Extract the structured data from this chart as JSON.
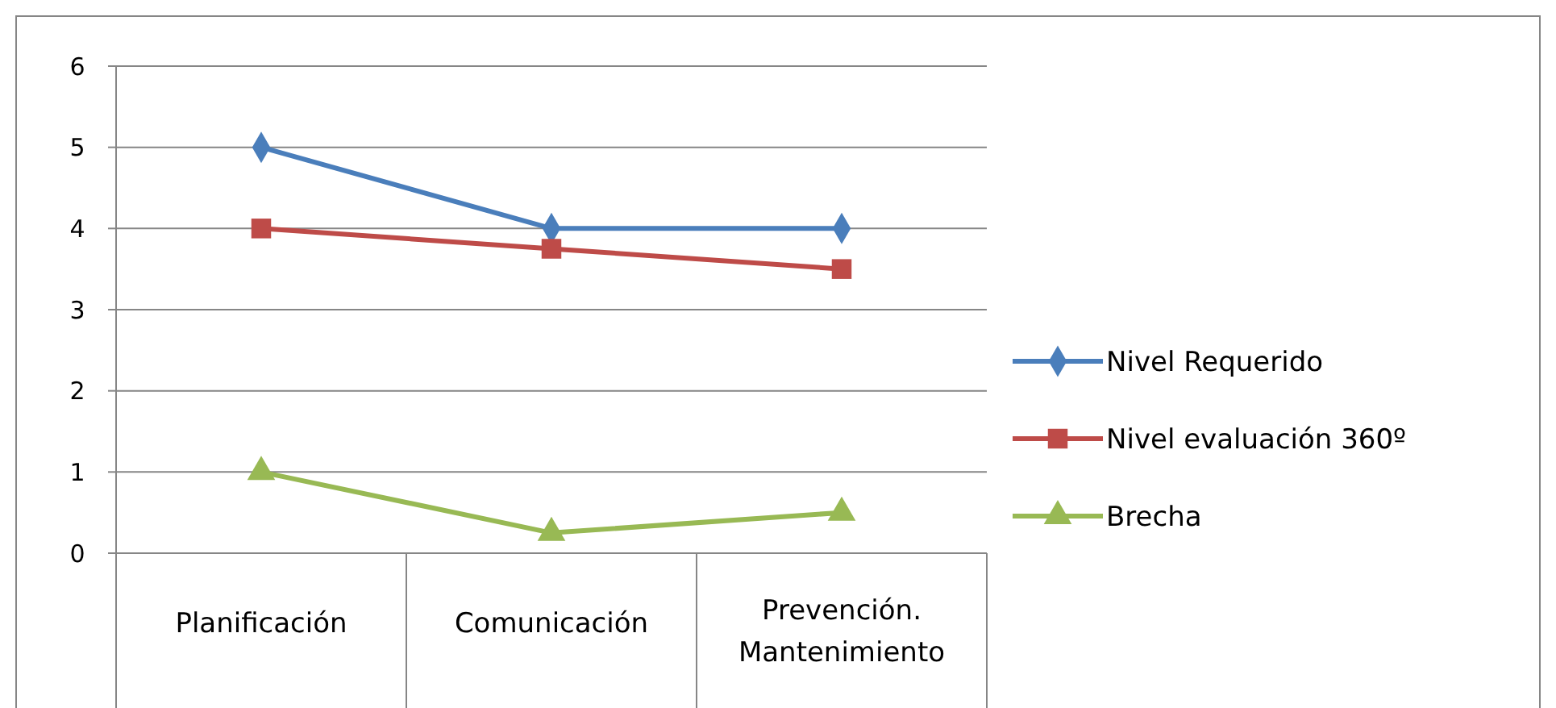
{
  "chart_data": {
    "type": "line",
    "categories": [
      "Planificación",
      "Comunicación",
      "Prevención. Mantenimiento"
    ],
    "series": [
      {
        "name": "Nivel Requerido",
        "color": "#4a7ebb",
        "values": [
          5,
          4,
          4
        ],
        "marker": "diamond"
      },
      {
        "name": "Nivel evaluación 360º",
        "color": "#be4b48",
        "values": [
          4,
          3.75,
          3.5
        ],
        "marker": "square"
      },
      {
        "name": "Brecha",
        "color": "#98b954",
        "values": [
          1,
          0.25,
          0.5
        ],
        "marker": "triangle"
      }
    ],
    "ylim": [
      0,
      6
    ],
    "yticks": [
      0,
      1,
      2,
      3,
      4,
      5,
      6
    ],
    "grid": "y",
    "legend": "right",
    "line_style": "solid"
  }
}
